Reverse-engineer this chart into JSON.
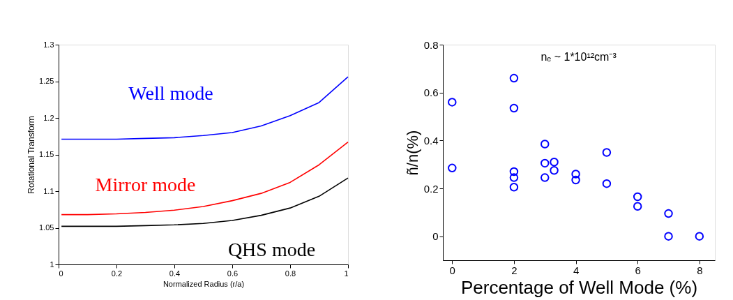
{
  "chart_data": [
    {
      "type": "line",
      "xlabel": "Normalized Radius (r/a)",
      "ylabel": "Rotational Transform",
      "x": [
        0.01,
        0.1,
        0.2,
        0.3,
        0.4,
        0.5,
        0.6,
        0.7,
        0.8,
        0.9,
        1.0
      ],
      "xlim": [
        0,
        1
      ],
      "ylim": [
        1,
        1.3
      ],
      "xticks": [
        0,
        0.2,
        0.4,
        0.6,
        0.8,
        1
      ],
      "yticks": [
        1,
        1.05,
        1.1,
        1.15,
        1.2,
        1.25,
        1.3
      ],
      "grid": false,
      "legend": false,
      "line_style": "solid",
      "marker": "none",
      "series": [
        {
          "name": "Well mode",
          "color": "#0000ff",
          "values": [
            1.171,
            1.171,
            1.171,
            1.172,
            1.173,
            1.176,
            1.18,
            1.189,
            1.203,
            1.221,
            1.256
          ]
        },
        {
          "name": "Mirror mode",
          "color": "#ff0000",
          "values": [
            1.068,
            1.068,
            1.069,
            1.071,
            1.074,
            1.079,
            1.087,
            1.097,
            1.112,
            1.136,
            1.167
          ]
        },
        {
          "name": "QHS mode",
          "color": "#000000",
          "values": [
            1.052,
            1.052,
            1.052,
            1.053,
            1.054,
            1.056,
            1.06,
            1.067,
            1.077,
            1.093,
            1.118
          ]
        }
      ]
    },
    {
      "type": "scatter",
      "xlabel": "Percentage of Well Mode (%)",
      "ylabel": "ñ/n(%)",
      "xlim": [
        -0.3,
        8.5
      ],
      "ylim": [
        -0.1,
        0.8
      ],
      "xticks": [
        0,
        2,
        4,
        6,
        8
      ],
      "yticks": [
        0,
        0.2,
        0.4,
        0.6,
        0.8
      ],
      "grid": false,
      "legend": false,
      "marker": "circle",
      "annotations": [
        "nₑ ~ 1*10¹²cm⁻³"
      ],
      "series": [
        {
          "color": "#0000ff",
          "x": [
            0,
            0,
            2,
            2,
            2,
            2,
            2,
            3,
            3,
            3,
            3.3,
            3.3,
            4,
            4,
            5,
            5,
            6,
            6,
            7,
            7,
            8
          ],
          "values": [
            0.56,
            0.285,
            0.66,
            0.535,
            0.27,
            0.245,
            0.205,
            0.385,
            0.305,
            0.245,
            0.31,
            0.275,
            0.26,
            0.235,
            0.35,
            0.22,
            0.165,
            0.125,
            0.095,
            0,
            0
          ]
        }
      ]
    }
  ]
}
